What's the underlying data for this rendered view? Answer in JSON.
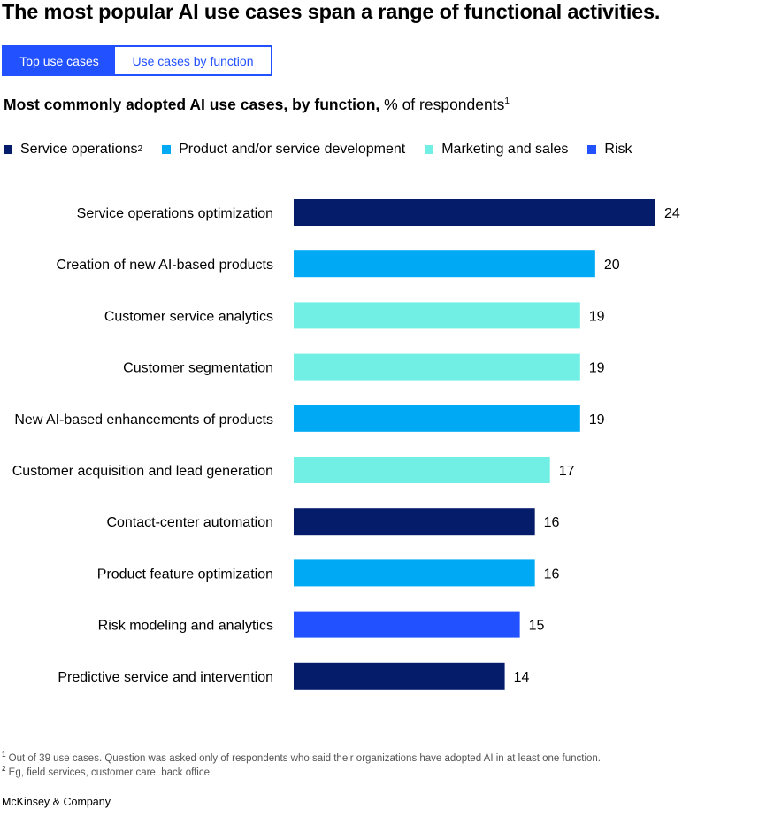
{
  "headline": "The most popular AI use cases span a range of functional activities.",
  "tabs": [
    {
      "label": "Top use cases",
      "active": true
    },
    {
      "label": "Use cases by function",
      "active": false
    }
  ],
  "subtitle": {
    "bold": "Most commonly adopted AI use cases, by function,",
    "normal": "% of respondents",
    "footnote_ref": "1"
  },
  "legend": [
    {
      "label": "Service operations",
      "sup": "2",
      "color": "#051c6b"
    },
    {
      "label": "Product and/or service development",
      "sup": "",
      "color": "#00a9f4"
    },
    {
      "label": "Marketing and sales",
      "sup": "",
      "color": "#72efe5"
    },
    {
      "label": "Risk",
      "sup": "",
      "color": "#2251ff"
    }
  ],
  "colors": {
    "accent": "#2251ff",
    "service_operations": "#051c6b",
    "product_development": "#00a9f4",
    "marketing_sales": "#72efe5",
    "risk": "#2251ff"
  },
  "chart_data": {
    "type": "bar",
    "orientation": "horizontal",
    "title": "Most commonly adopted AI use cases, by function, % of respondents",
    "categories": [
      "Service operations optimization",
      "Creation of new AI-based products",
      "Customer service analytics",
      "Customer segmentation",
      "New AI-based enhancements of products",
      "Customer acquisition and lead generation",
      "Contact-center automation",
      "Product feature optimization",
      "Risk modeling and analytics",
      "Predictive service and intervention"
    ],
    "values": [
      24,
      20,
      19,
      19,
      19,
      17,
      16,
      16,
      15,
      14
    ],
    "functions": [
      "Service operations",
      "Product and/or service development",
      "Marketing and sales",
      "Marketing and sales",
      "Product and/or service development",
      "Marketing and sales",
      "Service operations",
      "Product and/or service development",
      "Risk",
      "Service operations"
    ],
    "xlim": [
      0,
      24
    ],
    "grid": false,
    "legend_position": "top"
  },
  "footnotes": [
    {
      "ref": "1",
      "text": "Out of 39 use cases. Question was asked only of respondents who said their organizations have adopted AI in at least one function."
    },
    {
      "ref": "2",
      "text": "Eg, field services, customer care, back office."
    }
  ],
  "brand": "McKinsey & Company"
}
